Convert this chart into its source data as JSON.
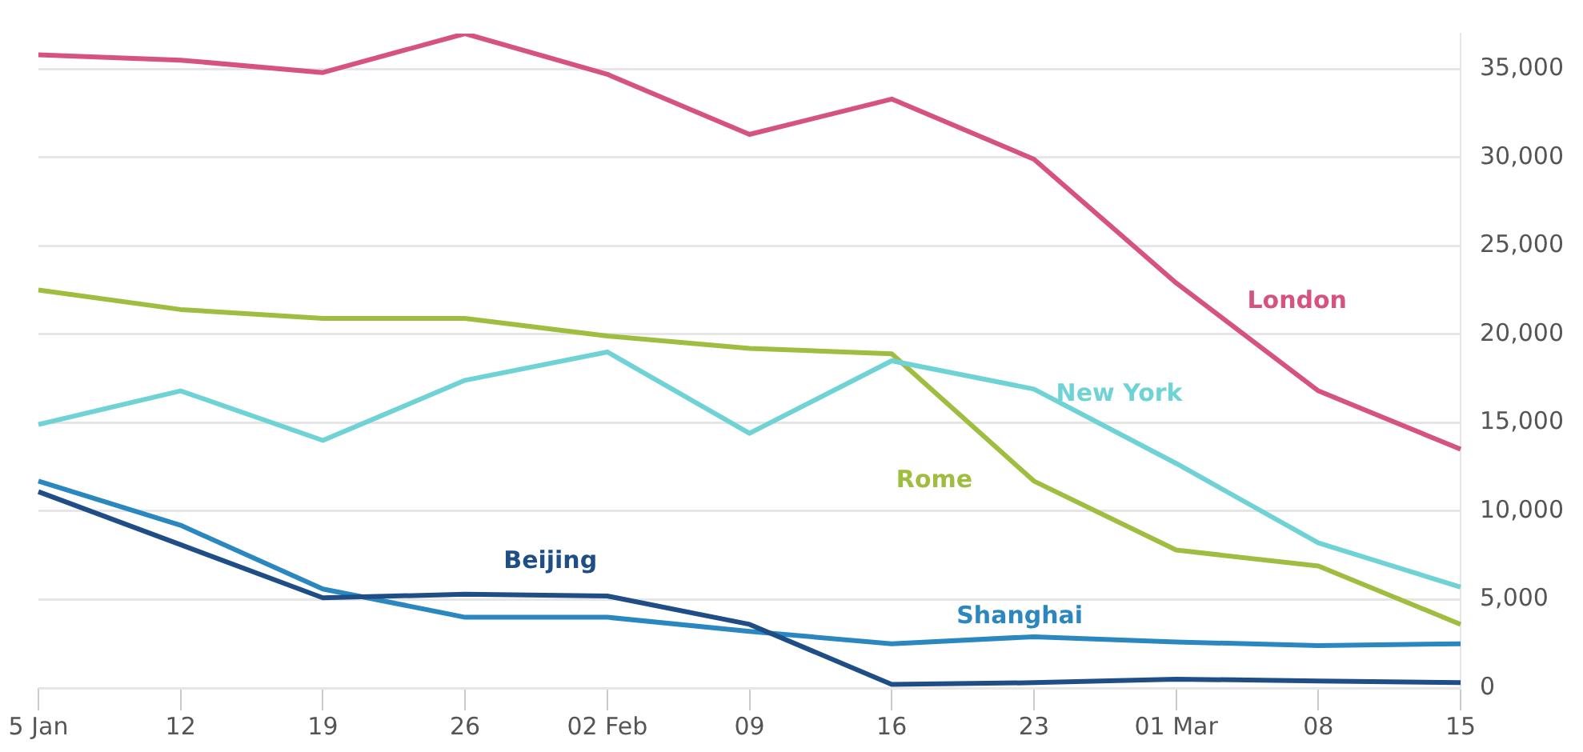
{
  "chart_data": {
    "type": "line",
    "categories": [
      "5 Jan",
      "12",
      "19",
      "26",
      "02 Feb",
      "09",
      "16",
      "23",
      "01 Mar",
      "08",
      "15"
    ],
    "series": [
      {
        "name": "London",
        "color": "#d6537f",
        "values": [
          35800,
          35500,
          34800,
          37000,
          34700,
          31300,
          33300,
          29900,
          22900,
          16800,
          13500
        ]
      },
      {
        "name": "New York",
        "color": "#6fd3d6",
        "values": [
          14900,
          16800,
          14000,
          17400,
          19000,
          14400,
          18500,
          16900,
          12700,
          8200,
          5700
        ]
      },
      {
        "name": "Rome",
        "color": "#9fbd3f",
        "values": [
          22500,
          21400,
          20900,
          20900,
          19900,
          19200,
          18900,
          11700,
          7800,
          6900,
          3600
        ]
      },
      {
        "name": "Beijing",
        "color": "#1f4e86",
        "values": [
          11100,
          8100,
          5100,
          5300,
          5200,
          3600,
          200,
          300,
          500,
          400,
          300
        ]
      },
      {
        "name": "Shanghai",
        "color": "#2a87c0",
        "values": [
          11700,
          9200,
          5600,
          4000,
          4000,
          3200,
          2500,
          2900,
          2600,
          2400,
          2500
        ]
      }
    ],
    "ylim": [
      0,
      37000
    ],
    "yticks": [
      0,
      {
        "value": 5000,
        "label": "5,000"
      },
      {
        "value": 10000,
        "label": "10,000"
      },
      {
        "value": 15000,
        "label": "15,000"
      },
      {
        "value": 20000,
        "label": "20,000"
      },
      {
        "value": 25000,
        "label": "25,000"
      },
      {
        "value": 30000,
        "label": "30,000"
      },
      {
        "value": 35000,
        "label": "35,000"
      }
    ],
    "grid": "y",
    "legend": false,
    "marker": "none",
    "line_style": "solid"
  }
}
